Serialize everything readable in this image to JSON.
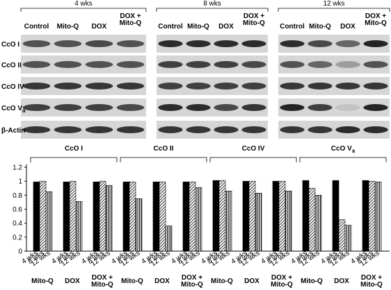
{
  "blots": {
    "periods": [
      "4 wks",
      "8 wks",
      "12 wks"
    ],
    "lanes": [
      [
        "Control"
      ],
      [
        "Mito-Q"
      ],
      [
        "DOX"
      ],
      [
        "DOX +",
        "Mito-Q"
      ]
    ],
    "rows": [
      {
        "name": "CcO I"
      },
      {
        "name": "CcO II"
      },
      {
        "name": "CcO IV"
      },
      {
        "name": "CcO V",
        "sub": "a"
      },
      {
        "name": "β-Actin"
      }
    ]
  },
  "chart_data": {
    "type": "grouped_bar",
    "groups": [
      {
        "name": "CcO I"
      },
      {
        "name": "CcO II"
      },
      {
        "name": "CcO IV"
      },
      {
        "name": "CcO V",
        "sub": "a"
      }
    ],
    "categories": [
      [
        "Mito-Q"
      ],
      [
        "DOX"
      ],
      [
        "DOX +",
        "Mito-Q"
      ]
    ],
    "series": [
      {
        "name": "4 wks",
        "color": "#000000",
        "hatch": "solid",
        "values": [
          [
            0.99,
            0.99,
            0.99
          ],
          [
            0.99,
            0.99,
            0.99
          ],
          [
            1.01,
            1.0,
            1.0
          ],
          [
            1.01,
            1.01,
            1.01
          ]
        ]
      },
      {
        "name": "8 wks",
        "color": "#000000",
        "hatch": "diagonal",
        "values": [
          [
            1.0,
            1.0,
            1.0
          ],
          [
            0.99,
            0.99,
            0.99
          ],
          [
            1.01,
            1.0,
            1.0
          ],
          [
            0.9,
            0.45,
            1.0
          ]
        ]
      },
      {
        "name": "12 wks",
        "color": "#000000",
        "hatch": "vertical",
        "values": [
          [
            0.85,
            0.71,
            0.94
          ],
          [
            0.75,
            0.36,
            0.91
          ],
          [
            0.86,
            0.83,
            0.86
          ],
          [
            0.8,
            0.37,
            0.99
          ]
        ]
      }
    ],
    "ylim": [
      0,
      1.2
    ],
    "yticks": [
      0,
      0.2,
      0.4,
      0.6,
      0.8,
      1,
      1.2
    ]
  }
}
